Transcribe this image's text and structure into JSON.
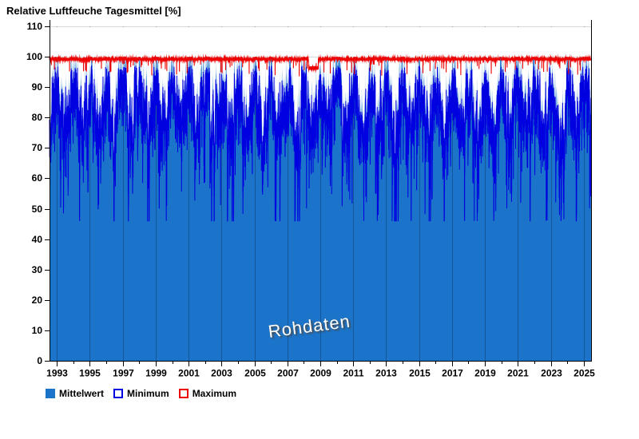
{
  "title": "Relative Luftfeuche Tagesmittel [%]",
  "watermark": "Rohdaten",
  "legend": [
    {
      "label": "Mittelwert",
      "swatch": "filled",
      "color": "#1B74C9"
    },
    {
      "label": "Minimum",
      "swatch": "outline",
      "color": "#0000E0"
    },
    {
      "label": "Maximum",
      "swatch": "outline",
      "color": "#EE0000"
    }
  ],
  "chart_data": {
    "type": "area",
    "title": "Relative Luftfeuche Tagesmittel [%]",
    "xlabel": "",
    "ylabel": "",
    "ylim": [
      0,
      110
    ],
    "xlim": [
      1992.55,
      2025.45
    ],
    "y_ticks": [
      0,
      10,
      20,
      30,
      40,
      50,
      60,
      70,
      80,
      90,
      100,
      110
    ],
    "x_major_ticks": [
      1993,
      1995,
      1997,
      1999,
      2001,
      2003,
      2005,
      2007,
      2009,
      2011,
      2013,
      2015,
      2017,
      2019,
      2021,
      2023,
      2025
    ],
    "x_minor_ticks": [
      1994,
      1996,
      1998,
      2000,
      2002,
      2004,
      2006,
      2008,
      2010,
      2012,
      2014,
      2016,
      2018,
      2020,
      2022,
      2024
    ],
    "h_grid_lines": [
      100,
      110
    ],
    "v_grid_years": [
      1993,
      1995,
      1997,
      1999,
      2001,
      2003,
      2005,
      2007,
      2009,
      2011,
      2013,
      2015,
      2017,
      2019,
      2021,
      2023,
      2025
    ],
    "legend_position": "bottom-left",
    "grid": true,
    "colors": {
      "fill": "#1B74C9",
      "min": "#0000E0",
      "max": "#EE0000",
      "axis": "#000000",
      "grid": "#D9D9D9",
      "grid_on_fill": "rgba(0,20,40,0.30)",
      "text": "#000000"
    },
    "series": [
      {
        "name": "Mittelwert",
        "type": "area",
        "color": "#1B74C9",
        "description": "Daily mean relative humidity 1993-2025; seasonal cycle, winter peaks capped near 99.6%, summer ~82%, dry-spell dips down to ~55%"
      },
      {
        "name": "Minimum",
        "type": "line",
        "color": "#0000E0",
        "description": "Daily minimum relative humidity; typically 3-12% below the mean, extreme spikes down to ~46%"
      },
      {
        "name": "Maximum",
        "type": "line",
        "color": "#EE0000",
        "description": "Daily maximum relative humidity; nearly constant ~99%, sustained dip to ~96% in mid-2008, sporadic notches to 93-97%"
      }
    ],
    "synthesis": {
      "seed": 42,
      "base": 89.5,
      "season_amp": 7.0,
      "season_phase": 0.04,
      "ar_k": 0.86,
      "ar_noise": 9,
      "event_p": 0.013,
      "event_min": 8,
      "event_span": 20,
      "event_decay": 0.88,
      "event_season_bias": 0.35,
      "mean_cap": 99.6,
      "mean_floor": 52,
      "min_gap": 2.5,
      "min_var": 9,
      "min_ev_k": 0.55,
      "min_spike_p": 0.035,
      "min_spike": 16,
      "min_floor": 46,
      "max_base": 99.2,
      "max_noise": 0.9,
      "max_notch_p": 0.008,
      "max_notch_depth": 4.5,
      "max_cap": 100,
      "max_min_above_mean": 0.2,
      "red_dip": {
        "from": 2008.28,
        "to": 2008.88,
        "level": 96.3,
        "noise": 1.2
      }
    }
  }
}
